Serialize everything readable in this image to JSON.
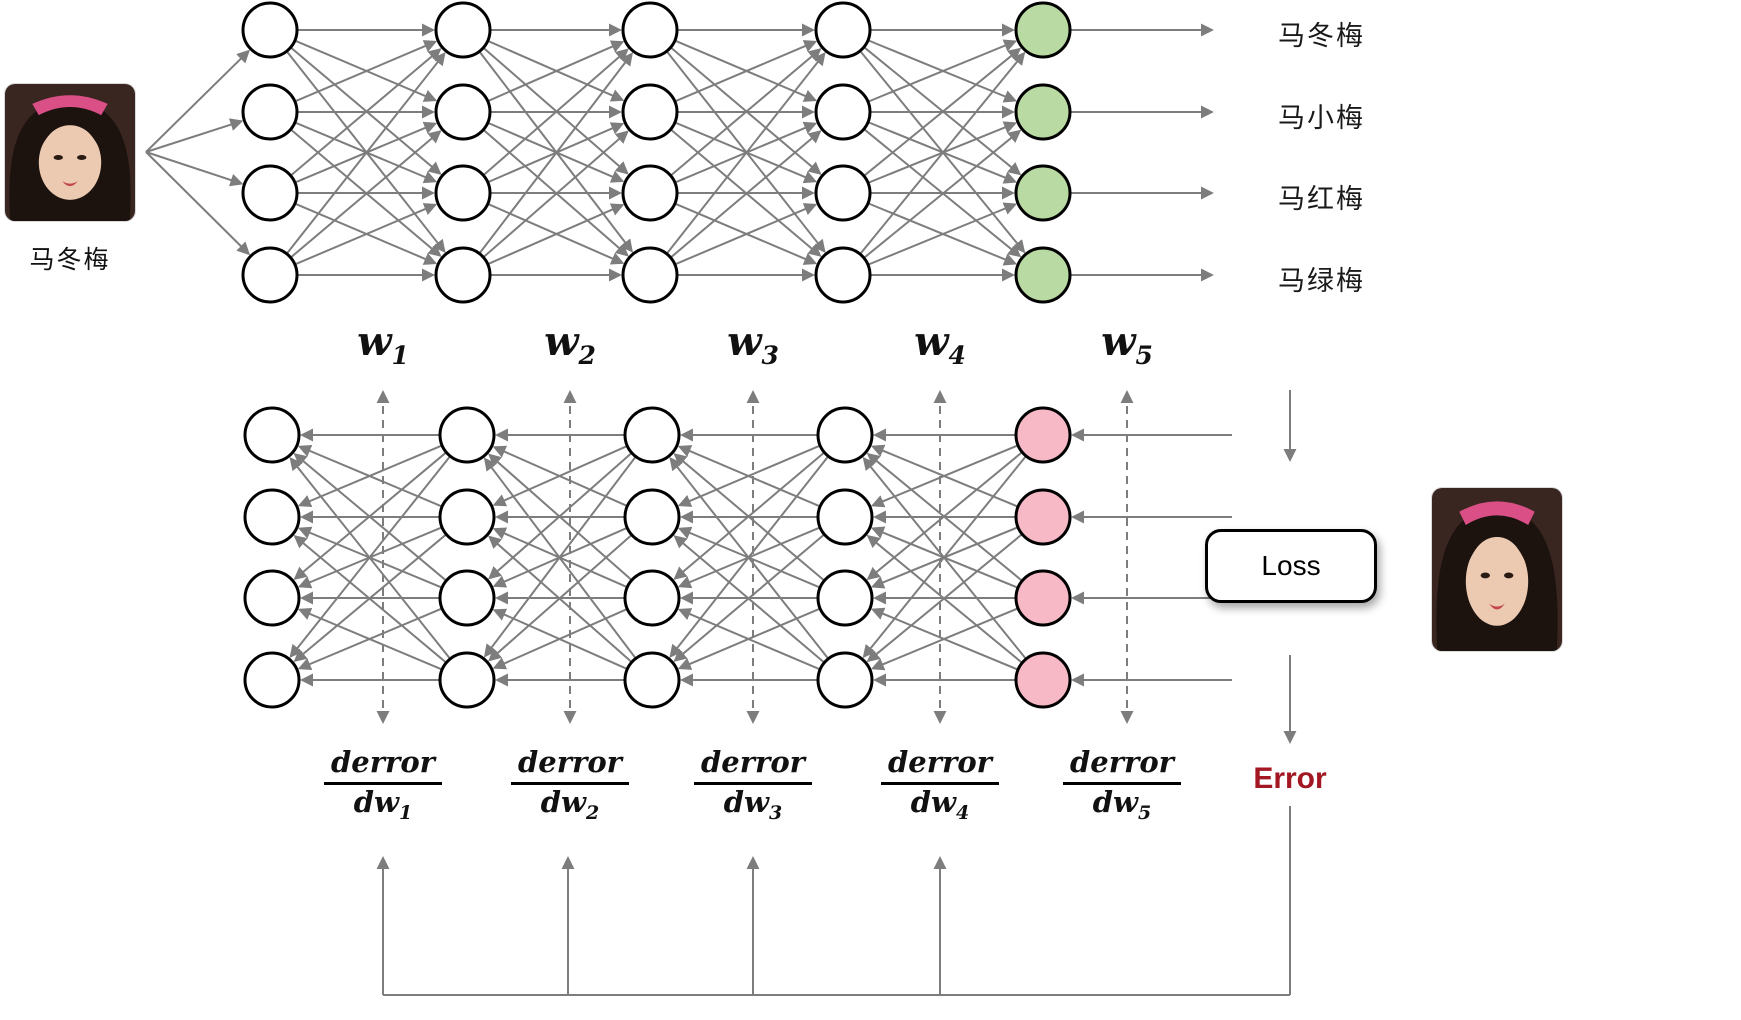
{
  "top_section": {
    "input_caption": "马冬梅",
    "output_labels": [
      "马冬梅",
      "马小梅",
      "马红梅",
      "马绿梅"
    ]
  },
  "weights": [
    {
      "base": "w",
      "sub": "1"
    },
    {
      "base": "w",
      "sub": "2"
    },
    {
      "base": "w",
      "sub": "3"
    },
    {
      "base": "w",
      "sub": "4"
    },
    {
      "base": "w",
      "sub": "5"
    }
  ],
  "derivatives": [
    {
      "numerator": "derror",
      "den_base": "dw",
      "den_sub": "1"
    },
    {
      "numerator": "derror",
      "den_base": "dw",
      "den_sub": "2"
    },
    {
      "numerator": "derror",
      "den_base": "dw",
      "den_sub": "3"
    },
    {
      "numerator": "derror",
      "den_base": "dw",
      "den_sub": "4"
    },
    {
      "numerator": "derror",
      "den_base": "dw",
      "den_sub": "5"
    }
  ],
  "loss_label": "Loss",
  "error_label": "Error",
  "colors": {
    "edge_gray": "#7d7d7d",
    "node_outline": "#000000",
    "output_green": "#b9dba3",
    "output_pink": "#f6b9c5",
    "error_red": "#a31722"
  }
}
